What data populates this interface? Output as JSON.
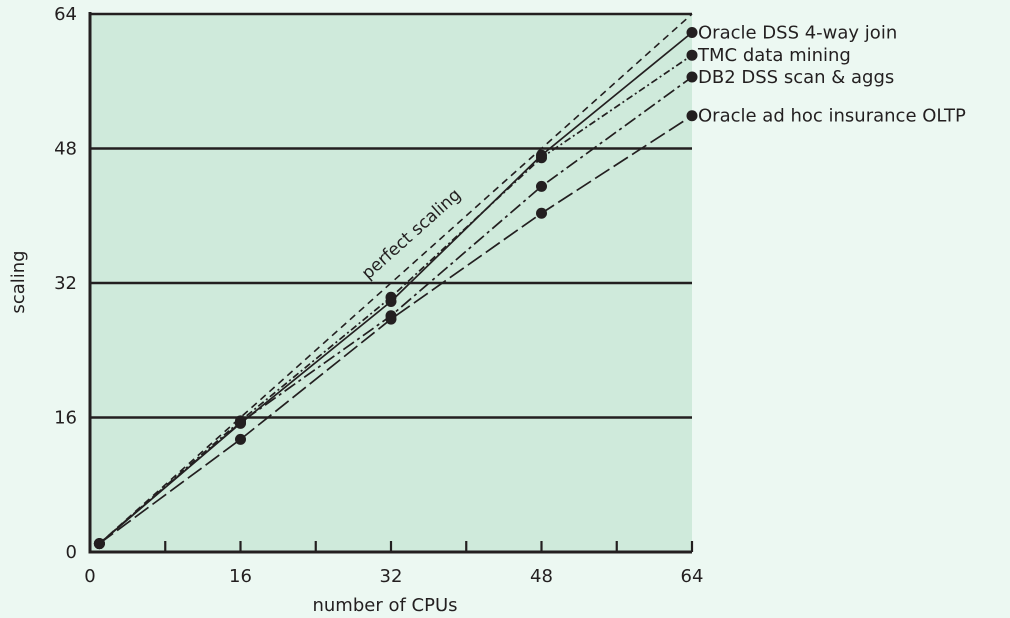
{
  "chart_data": {
    "type": "line",
    "xlabel": "number of CPUs",
    "ylabel": "scaling",
    "xlim": [
      0,
      64
    ],
    "ylim": [
      0,
      64
    ],
    "x_ticks": [
      "0",
      "16",
      "32",
      "48",
      "64"
    ],
    "y_ticks": [
      "0",
      "16",
      "32",
      "48",
      "64"
    ],
    "annotation": "perfect scaling",
    "grid": "horizontal",
    "colors": {
      "plot_bg": "#cfeadb",
      "page_bg": "#ecf8f2",
      "ink": "#231f20"
    },
    "reference_line": {
      "x": [
        1,
        64
      ],
      "y": [
        1,
        64
      ]
    },
    "series": [
      {
        "name": "Oracle DSS 4-way join",
        "dash": "solid",
        "x": [
          1,
          16,
          32,
          48,
          64
        ],
        "y": [
          1,
          15.3,
          29.8,
          47.2,
          61.8
        ]
      },
      {
        "name": "TMC data mining",
        "dash": "dot-dash",
        "x": [
          1,
          16,
          32,
          48,
          64
        ],
        "y": [
          1,
          15.6,
          30.3,
          46.9,
          59.1
        ]
      },
      {
        "name": "DB2 DSS scan & aggs",
        "dash": "dash-dot",
        "x": [
          1,
          16,
          32,
          48,
          64
        ],
        "y": [
          1,
          15.4,
          28.1,
          43.5,
          56.5
        ]
      },
      {
        "name": "Oracle ad hoc insurance OLTP",
        "dash": "long-dash",
        "x": [
          1,
          16,
          32,
          48,
          64
        ],
        "y": [
          1,
          13.4,
          27.7,
          40.3,
          51.9
        ]
      }
    ]
  }
}
